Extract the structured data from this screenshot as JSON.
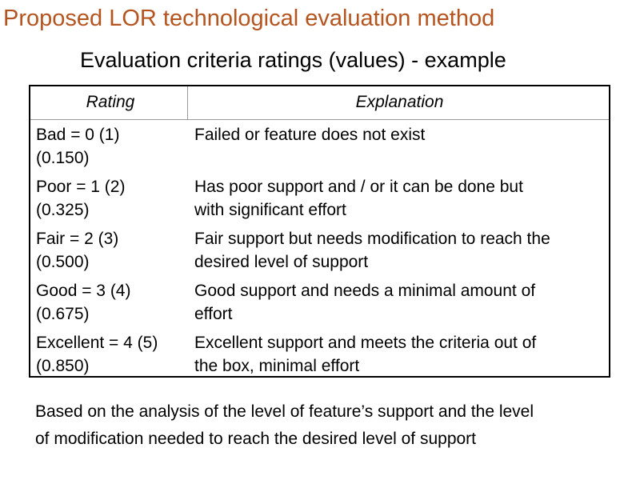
{
  "title": "Proposed LOR technological evaluation method",
  "subtitle": "Evaluation criteria ratings (values) - example",
  "table": {
    "headers": {
      "rating": "Rating",
      "explanation": "Explanation"
    },
    "rows": [
      {
        "rating": "Bad = 0 (1)\n(0.150)",
        "explanation": "Failed or feature does not exist"
      },
      {
        "rating": "Poor = 1 (2)\n(0.325)",
        "explanation": "Has poor support and / or it can be done but\nwith significant effort"
      },
      {
        "rating": "Fair = 2 (3)\n(0.500)",
        "explanation": "Fair support but needs modification to reach the\ndesired level of support"
      },
      {
        "rating": "Good = 3 (4)\n(0.675)",
        "explanation": "Good support and needs a minimal amount of\neffort"
      },
      {
        "rating": "Excellent = 4 (5)\n(0.850)",
        "explanation": "Excellent support and meets the criteria out of\nthe box, minimal effort"
      }
    ]
  },
  "footer": "Based on the analysis of the level of feature’s support and the level\nof modification needed to reach the desired level of support",
  "colors": {
    "title": "#b5541f",
    "text": "#000000",
    "background": "#ffffff"
  }
}
